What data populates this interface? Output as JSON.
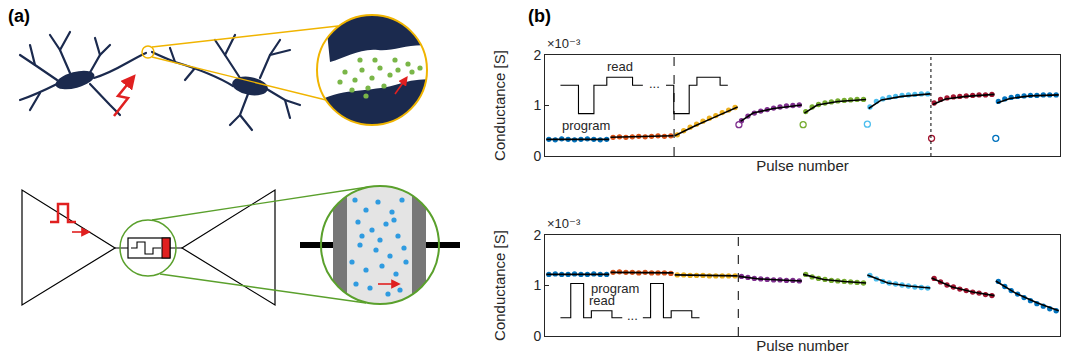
{
  "panels": {
    "a": {
      "label": "(a)"
    },
    "b": {
      "label": "(b)"
    }
  },
  "chart_data": [
    {
      "type": "scatter",
      "x_label": "Pulse number",
      "y_label": "Conductance [S]",
      "tick_labels": "y",
      "grid": false,
      "xlim": [
        0,
        401
      ],
      "ylim": [
        0,
        0.002
      ],
      "yticks": [
        0,
        {
          "value": 0.001,
          "label": "1"
        },
        {
          "value": 0.002,
          "label": "2"
        }
      ],
      "annotations": [
        {
          "text": "×10⁻³"
        },
        {
          "text": "program"
        },
        {
          "text": "read"
        },
        {
          "text": "..."
        },
        {
          "x": 100.5,
          "line_style": "dashed"
        },
        {
          "x": 300.5,
          "line_style": "dotted"
        }
      ],
      "series": [
        {
          "type": "scatter",
          "marker": "dot",
          "color": "#0072BD",
          "x": [
            3,
            8,
            13,
            18,
            23,
            28,
            33,
            38,
            43,
            48
          ],
          "values": [
            0.00033,
            0.00032,
            0.00034,
            0.00033,
            0.00032,
            0.00033,
            0.00034,
            0.00033,
            0.00032,
            0.00033
          ]
        },
        {
          "type": "scatter",
          "marker": "dot",
          "color": "#D95319",
          "x": [
            53,
            58,
            63,
            68,
            73,
            78,
            83,
            88,
            93,
            98
          ],
          "values": [
            0.00037,
            0.00038,
            0.00037,
            0.00038,
            0.00039,
            0.00038,
            0.00039,
            0.0004,
            0.00039,
            0.0004
          ]
        },
        {
          "type": "scatter",
          "marker": "dot",
          "color": "#EDB120",
          "x": [
            103,
            108,
            113,
            118,
            123,
            128,
            133,
            138,
            143,
            148
          ],
          "values": [
            0.00042,
            0.0005,
            0.00057,
            0.00063,
            0.00069,
            0.00075,
            0.0008,
            0.00086,
            0.00091,
            0.00096
          ]
        },
        {
          "type": "scatter",
          "marker": "dot",
          "color": "#7E2F8E",
          "x": [
            153,
            158,
            163,
            168,
            173,
            178,
            183,
            188,
            193,
            198
          ],
          "values": [
            0.0007,
            0.00079,
            0.00085,
            0.00089,
            0.00092,
            0.00095,
            0.00097,
            0.00099,
            0.001,
            0.00101
          ]
        },
        {
          "type": "scatter",
          "marker": "dot",
          "color": "#77AC30",
          "x": [
            203,
            208,
            213,
            218,
            223,
            228,
            233,
            238,
            243,
            248
          ],
          "values": [
            0.00088,
            0.00097,
            0.00102,
            0.00105,
            0.00107,
            0.00109,
            0.0011,
            0.00111,
            0.00112,
            0.00112
          ]
        },
        {
          "type": "scatter",
          "marker": "dot",
          "color": "#4DBEEE",
          "x": [
            253,
            258,
            263,
            268,
            273,
            278,
            283,
            288,
            293,
            298
          ],
          "values": [
            0.00097,
            0.00108,
            0.00113,
            0.00116,
            0.00118,
            0.0012,
            0.00121,
            0.00122,
            0.00123,
            0.00123
          ]
        },
        {
          "type": "scatter",
          "marker": "dot",
          "color": "#A2142F",
          "x": [
            303,
            308,
            313,
            318,
            323,
            328,
            333,
            338,
            343,
            348
          ],
          "values": [
            0.00105,
            0.00112,
            0.00115,
            0.00117,
            0.00118,
            0.00119,
            0.0012,
            0.00121,
            0.00121,
            0.00122
          ]
        },
        {
          "type": "scatter",
          "marker": "dot",
          "color": "#0072BD",
          "x": [
            353,
            358,
            363,
            368,
            373,
            378,
            383,
            388,
            393,
            398
          ],
          "values": [
            0.00108,
            0.00113,
            0.00116,
            0.00118,
            0.00119,
            0.0012,
            0.0012,
            0.00121,
            0.00121,
            0.00121
          ]
        },
        {
          "type": "line",
          "line_style": "solid",
          "color": "#000000",
          "x": [
            1,
            50
          ],
          "values": [
            0.00033,
            0.00033
          ]
        },
        {
          "type": "line",
          "line_style": "solid",
          "color": "#000000",
          "x": [
            51,
            100
          ],
          "values": [
            0.00037,
            0.0004
          ]
        },
        {
          "type": "line",
          "line_style": "solid",
          "color": "#000000",
          "x": [
            101,
            117,
            133,
            150
          ],
          "values": [
            0.0004,
            0.0006,
            0.00078,
            0.00097
          ]
        },
        {
          "type": "line",
          "line_style": "solid",
          "color": "#000000",
          "x": [
            152,
            162,
            178,
            200
          ],
          "values": [
            0.00068,
            0.00085,
            0.00094,
            0.00101
          ]
        },
        {
          "type": "line",
          "line_style": "solid",
          "color": "#000000",
          "x": [
            202,
            212,
            228,
            250
          ],
          "values": [
            0.00085,
            0.00101,
            0.00108,
            0.00112
          ]
        },
        {
          "type": "line",
          "line_style": "solid",
          "color": "#000000",
          "x": [
            252,
            262,
            278,
            300
          ],
          "values": [
            0.00094,
            0.00111,
            0.00118,
            0.00123
          ]
        },
        {
          "type": "line",
          "line_style": "solid",
          "color": "#000000",
          "x": [
            302,
            312,
            328,
            350
          ],
          "values": [
            0.00102,
            0.00113,
            0.00118,
            0.00122
          ]
        },
        {
          "type": "line",
          "line_style": "solid",
          "color": "#000000",
          "x": [
            352,
            362,
            378,
            400
          ],
          "values": [
            0.00105,
            0.00114,
            0.00119,
            0.00121
          ]
        },
        {
          "type": "scatter",
          "marker": "open_circle",
          "colors": [
            "#7E2F8E",
            "#77AC30",
            "#4DBEEE",
            "#A2142F",
            "#0072BD"
          ],
          "x": [
            151,
            201,
            251,
            301,
            351
          ],
          "values": [
            0.00062,
            0.00062,
            0.00063,
            0.00035,
            0.00035
          ]
        }
      ]
    },
    {
      "type": "scatter",
      "x_label": "Pulse number",
      "y_label": "Conductance [S]",
      "tick_labels": "y",
      "grid": false,
      "xlim": [
        0,
        401
      ],
      "ylim": [
        0,
        0.002
      ],
      "yticks": [
        0,
        {
          "value": 0.001,
          "label": "1"
        },
        {
          "value": 0.002,
          "label": "2"
        }
      ],
      "annotations": [
        {
          "text": "×10⁻³"
        },
        {
          "text": "program"
        },
        {
          "text": "read"
        },
        {
          "text": "..."
        },
        {
          "x": 150.5,
          "line_style": "dashed"
        }
      ],
      "series": [
        {
          "type": "scatter",
          "marker": "dot",
          "color": "#0072BD",
          "x": [
            3,
            8,
            13,
            18,
            23,
            28,
            33,
            38,
            43,
            48
          ],
          "values": [
            0.00122,
            0.00123,
            0.00122,
            0.00122,
            0.00123,
            0.00122,
            0.00122,
            0.00123,
            0.00122,
            0.00122
          ]
        },
        {
          "type": "scatter",
          "marker": "dot",
          "color": "#D95319",
          "x": [
            53,
            58,
            63,
            68,
            73,
            78,
            83,
            88,
            93,
            98
          ],
          "values": [
            0.00126,
            0.00127,
            0.00126,
            0.00126,
            0.00125,
            0.00126,
            0.00125,
            0.00125,
            0.00125,
            0.00124
          ]
        },
        {
          "type": "scatter",
          "marker": "dot",
          "color": "#EDB120",
          "x": [
            103,
            108,
            113,
            118,
            123,
            128,
            133,
            138,
            143,
            148
          ],
          "values": [
            0.00121,
            0.00121,
            0.0012,
            0.0012,
            0.0012,
            0.00119,
            0.00119,
            0.00119,
            0.00119,
            0.00119
          ]
        },
        {
          "type": "scatter",
          "marker": "dot",
          "color": "#7E2F8E",
          "x": [
            153,
            158,
            163,
            168,
            173,
            178,
            183,
            188,
            193,
            198
          ],
          "values": [
            0.00118,
            0.00116,
            0.00114,
            0.00113,
            0.00112,
            0.00111,
            0.00111,
            0.0011,
            0.0011,
            0.00109
          ]
        },
        {
          "type": "scatter",
          "marker": "dot",
          "color": "#77AC30",
          "x": [
            203,
            208,
            213,
            218,
            223,
            228,
            233,
            238,
            243,
            248
          ],
          "values": [
            0.00122,
            0.00117,
            0.00114,
            0.00112,
            0.0011,
            0.00109,
            0.00108,
            0.00107,
            0.00106,
            0.00105
          ]
        },
        {
          "type": "scatter",
          "marker": "dot",
          "color": "#4DBEEE",
          "x": [
            253,
            258,
            263,
            268,
            273,
            278,
            283,
            288,
            293,
            298
          ],
          "values": [
            0.0012,
            0.00113,
            0.00108,
            0.00105,
            0.00103,
            0.00101,
            0.00099,
            0.00097,
            0.00096,
            0.00095
          ]
        },
        {
          "type": "scatter",
          "marker": "dot",
          "color": "#A2142F",
          "x": [
            303,
            308,
            313,
            318,
            323,
            328,
            333,
            338,
            343,
            348
          ],
          "values": [
            0.00114,
            0.00107,
            0.00101,
            0.00097,
            0.00093,
            0.0009,
            0.00087,
            0.00085,
            0.00082,
            0.0008
          ]
        },
        {
          "type": "scatter",
          "marker": "dot",
          "color": "#0072BD",
          "x": [
            353,
            358,
            363,
            368,
            373,
            378,
            383,
            388,
            393,
            398
          ],
          "values": [
            0.00108,
            0.00098,
            0.0009,
            0.00083,
            0.00076,
            0.0007,
            0.00064,
            0.00059,
            0.00054,
            0.0005
          ]
        },
        {
          "type": "line",
          "line_style": "solid",
          "color": "#000000",
          "x": [
            1,
            50
          ],
          "values": [
            0.00122,
            0.00122
          ]
        },
        {
          "type": "line",
          "line_style": "solid",
          "color": "#000000",
          "x": [
            51,
            100
          ],
          "values": [
            0.00126,
            0.00125
          ]
        },
        {
          "type": "line",
          "line_style": "solid",
          "color": "#000000",
          "x": [
            101,
            150
          ],
          "values": [
            0.00121,
            0.00119
          ]
        },
        {
          "type": "line",
          "line_style": "solid",
          "color": "#000000",
          "x": [
            151,
            167,
            183,
            200
          ],
          "values": [
            0.00118,
            0.00113,
            0.00111,
            0.00109
          ]
        },
        {
          "type": "line",
          "line_style": "solid",
          "color": "#000000",
          "x": [
            201,
            217,
            233,
            250
          ],
          "values": [
            0.00122,
            0.00112,
            0.00108,
            0.00105
          ]
        },
        {
          "type": "line",
          "line_style": "solid",
          "color": "#000000",
          "x": [
            251,
            267,
            283,
            300
          ],
          "values": [
            0.00121,
            0.00105,
            0.00099,
            0.00095
          ]
        },
        {
          "type": "line",
          "line_style": "solid",
          "color": "#000000",
          "x": [
            301,
            317,
            333,
            350
          ],
          "values": [
            0.00115,
            0.00097,
            0.00087,
            0.0008
          ]
        },
        {
          "type": "line",
          "line_style": "solid",
          "color": "#000000",
          "x": [
            351,
            367,
            383,
            400
          ],
          "values": [
            0.00109,
            0.00084,
            0.00066,
            0.0005
          ]
        }
      ]
    }
  ]
}
